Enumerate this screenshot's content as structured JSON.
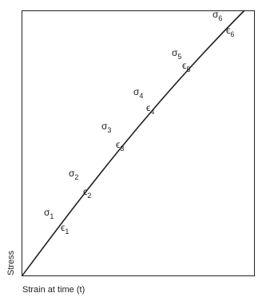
{
  "axes": {
    "y_label": "Stress",
    "x_label": "Strain at time (t)"
  },
  "stress_labels": [
    {
      "symbol": "σ",
      "subscript": "1"
    },
    {
      "symbol": "σ",
      "subscript": "2"
    },
    {
      "symbol": "σ",
      "subscript": "3"
    },
    {
      "symbol": "σ",
      "subscript": "4"
    },
    {
      "symbol": "σ",
      "subscript": "5"
    },
    {
      "symbol": "σ",
      "subscript": "6"
    }
  ],
  "strain_labels": [
    {
      "symbol": "ϵ",
      "subscript": "1"
    },
    {
      "symbol": "ϵ",
      "subscript": "2"
    },
    {
      "symbol": "ϵ",
      "subscript": "3"
    },
    {
      "symbol": "ϵ",
      "subscript": "4"
    },
    {
      "symbol": "ϵ",
      "subscript": "5"
    },
    {
      "symbol": "ϵ",
      "subscript": "6"
    }
  ]
}
